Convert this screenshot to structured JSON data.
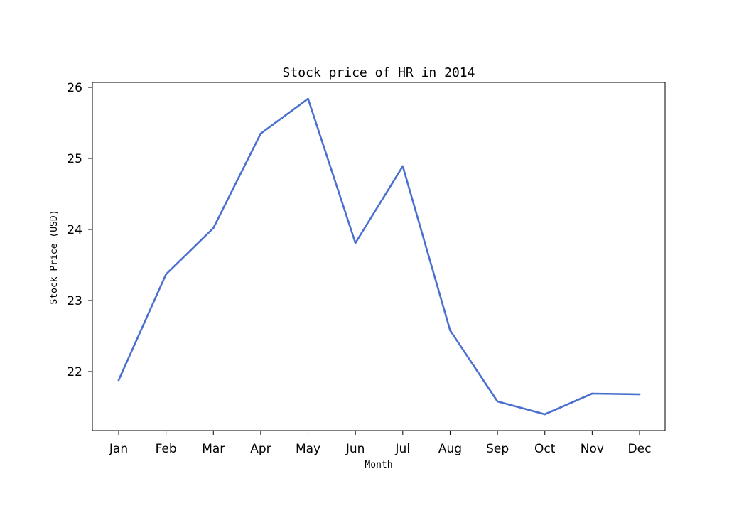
{
  "chart_data": {
    "type": "line",
    "title": "Stock price of HR in 2014",
    "xlabel": "Month",
    "ylabel": "Stock Price (USD)",
    "categories": [
      "Jan",
      "Feb",
      "Mar",
      "Apr",
      "May",
      "Jun",
      "Jul",
      "Aug",
      "Sep",
      "Oct",
      "Nov",
      "Dec"
    ],
    "series": [
      {
        "values": [
          21.88,
          23.37,
          24.02,
          25.35,
          25.84,
          23.81,
          24.89,
          22.58,
          21.58,
          21.4,
          21.69,
          21.68
        ]
      }
    ],
    "yticks": [
      22,
      23,
      24,
      25,
      26
    ],
    "ylim": [
      21.17,
      26.07
    ],
    "grid": false,
    "line_color": "#4a6fce"
  }
}
